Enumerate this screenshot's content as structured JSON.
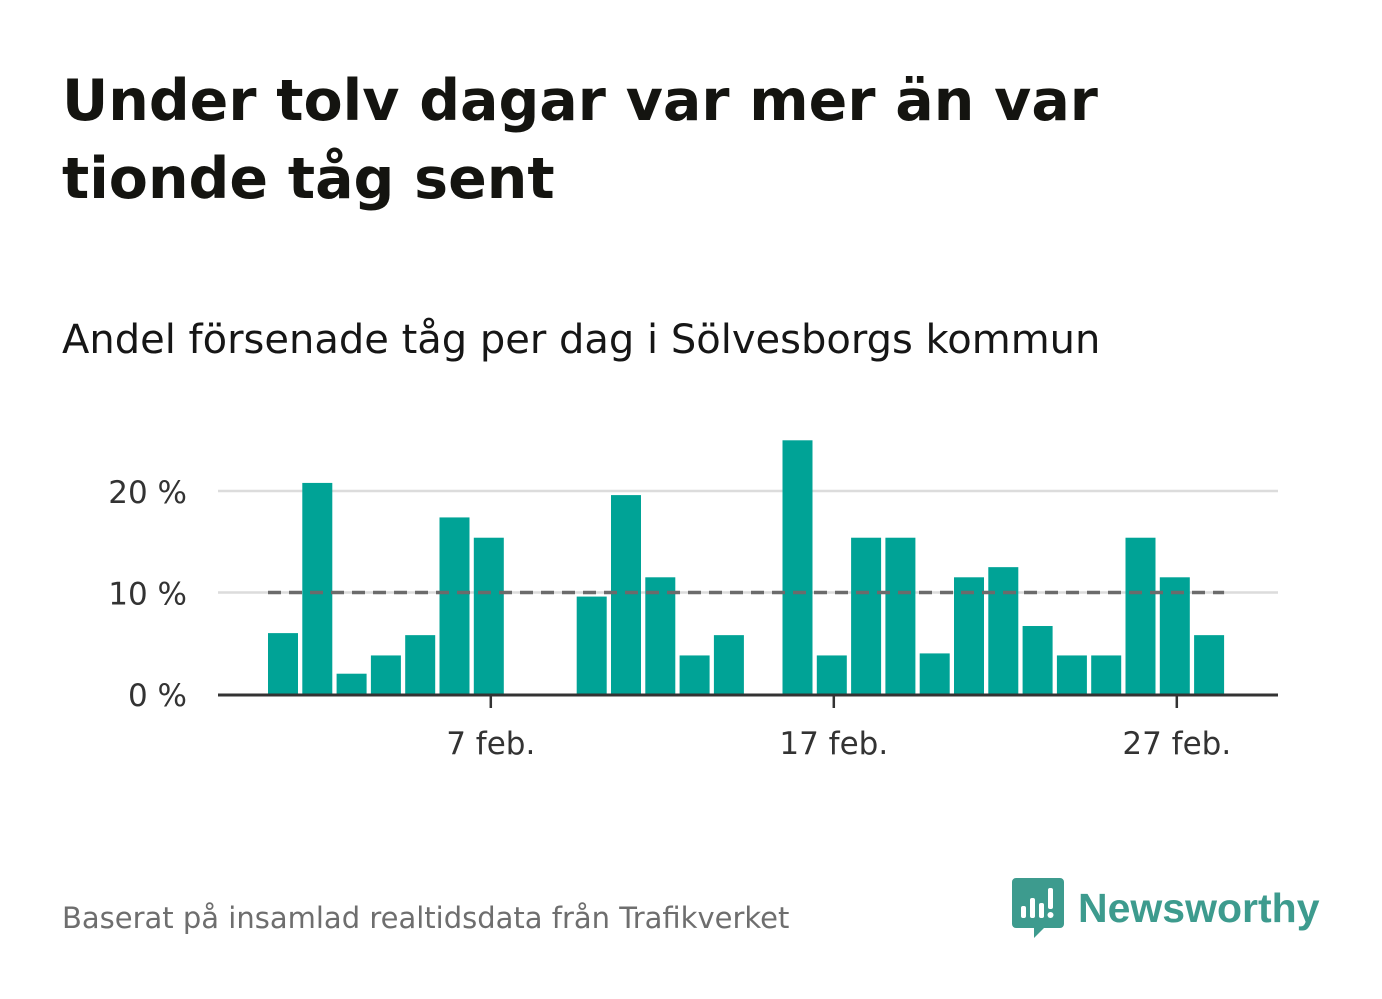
{
  "title": "Under tolv dagar var mer än var tionde tåg sent",
  "subtitle": "Andel försenade tåg per dag i Sölvesborgs kommun",
  "footer": "Baserat på insamlad realtidsdata från Trafikverket",
  "brand": {
    "name": "Newsworthy",
    "icon": "newsworthy-logo-icon",
    "color": "#3d9b8e"
  },
  "colors": {
    "bar": "#00a396",
    "reference": "#6b6b6b",
    "grid": "#dcdcdc",
    "axis": "#333333"
  },
  "chart_data": {
    "type": "bar",
    "title": "Andel försenade tåg per dag i Sölvesborgs kommun",
    "xlabel": "",
    "ylabel": "",
    "x_start_day": 1,
    "month_label": "feb.",
    "days": [
      1,
      2,
      3,
      4,
      5,
      6,
      7,
      8,
      9,
      10,
      11,
      12,
      13,
      14,
      15,
      16,
      17,
      18,
      19,
      20,
      21,
      22,
      23,
      24,
      25,
      26,
      27,
      28
    ],
    "values": [
      6,
      20.8,
      2,
      3.8,
      5.8,
      17.4,
      15.4,
      null,
      null,
      9.6,
      19.6,
      11.5,
      3.8,
      5.8,
      null,
      25,
      3.8,
      15.4,
      15.4,
      4,
      11.5,
      12.5,
      6.7,
      3.8,
      3.8,
      15.4,
      11.5,
      5.8
    ],
    "reference_line": 10,
    "ylim": [
      0,
      27
    ],
    "yticks": [
      0,
      10,
      20
    ],
    "ytick_labels": [
      "0 %",
      "10 %",
      "20 %"
    ],
    "xticks": [
      7,
      17,
      27
    ],
    "xtick_labels": [
      "7 feb.",
      "17 feb.",
      "27 feb."
    ],
    "grid": true
  }
}
